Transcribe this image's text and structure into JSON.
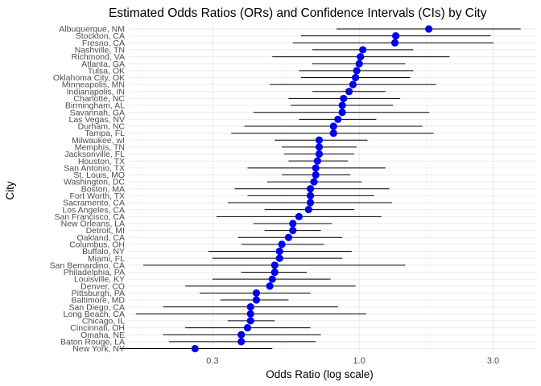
{
  "chart_data": {
    "type": "forest",
    "title": "Estimated Odds Ratios (ORs) and Confidence Intervals (CIs) by City",
    "xlabel": "Odds Ratio (log scale)",
    "ylabel": "City",
    "x_scale": "log",
    "xlim": [
      0.15,
      4.3
    ],
    "x_ticks": [
      0.3,
      1.0,
      3.0
    ],
    "x_tick_labels": [
      "0.3",
      "1.0",
      "3.0"
    ],
    "grid": true,
    "point_color": "#0000ee",
    "line_color": "#000000",
    "cities": [
      {
        "name": "Albuquerque, NM",
        "or": 1.77,
        "lo": 0.83,
        "hi": 3.76
      },
      {
        "name": "Stockton, CA",
        "or": 1.35,
        "lo": 0.62,
        "hi": 2.94
      },
      {
        "name": "Fresno, CA",
        "or": 1.34,
        "lo": 0.58,
        "hi": 3.01
      },
      {
        "name": "Nashville, TN",
        "or": 1.03,
        "lo": 0.68,
        "hi": 1.56
      },
      {
        "name": "Richmond, VA",
        "or": 1.01,
        "lo": 0.49,
        "hi": 2.1
      },
      {
        "name": "Atlanta, GA",
        "or": 1.0,
        "lo": 0.68,
        "hi": 1.46
      },
      {
        "name": "Tulsa, OK",
        "or": 0.98,
        "lo": 0.61,
        "hi": 1.56
      },
      {
        "name": "Oklahoma City, OK",
        "or": 0.97,
        "lo": 0.62,
        "hi": 1.52
      },
      {
        "name": "Minneapolis, MN",
        "or": 0.95,
        "lo": 0.48,
        "hi": 1.88
      },
      {
        "name": "Indianapolis, IN",
        "or": 0.92,
        "lo": 0.68,
        "hi": 1.24
      },
      {
        "name": "Charlotte, NC",
        "or": 0.88,
        "lo": 0.56,
        "hi": 1.4
      },
      {
        "name": "Birmingham, AL",
        "or": 0.87,
        "lo": 0.57,
        "hi": 1.32
      },
      {
        "name": "Savannah, GA",
        "or": 0.87,
        "lo": 0.42,
        "hi": 1.78
      },
      {
        "name": "Las Vegas, NV",
        "or": 0.84,
        "lo": 0.61,
        "hi": 1.15
      },
      {
        "name": "Durham, NC",
        "or": 0.81,
        "lo": 0.39,
        "hi": 1.68
      },
      {
        "name": "Tampa, FL",
        "or": 0.81,
        "lo": 0.35,
        "hi": 1.84
      },
      {
        "name": "Milwaukee, wI",
        "or": 0.72,
        "lo": 0.5,
        "hi": 1.07
      },
      {
        "name": "Memphis, TN",
        "or": 0.72,
        "lo": 0.53,
        "hi": 0.98
      },
      {
        "name": "Jacksonville, FL",
        "or": 0.72,
        "lo": 0.54,
        "hi": 0.96
      },
      {
        "name": "Houston, TX",
        "or": 0.71,
        "lo": 0.56,
        "hi": 0.91
      },
      {
        "name": "San Antonio, TX",
        "or": 0.7,
        "lo": 0.4,
        "hi": 1.24
      },
      {
        "name": "St. Louis, MO",
        "or": 0.7,
        "lo": 0.53,
        "hi": 0.93
      },
      {
        "name": "Washington, DC",
        "or": 0.69,
        "lo": 0.47,
        "hi": 1.02
      },
      {
        "name": "Boston, MA",
        "or": 0.67,
        "lo": 0.36,
        "hi": 1.28
      },
      {
        "name": "Fort Worth, TX",
        "or": 0.67,
        "lo": 0.4,
        "hi": 1.13
      },
      {
        "name": "Sacramento, CA",
        "or": 0.67,
        "lo": 0.34,
        "hi": 1.31
      },
      {
        "name": "Los Angeles, CA",
        "or": 0.66,
        "lo": 0.46,
        "hi": 0.96
      },
      {
        "name": "San Francisco, CA",
        "or": 0.61,
        "lo": 0.31,
        "hi": 1.2
      },
      {
        "name": "New Orleans, LA",
        "or": 0.58,
        "lo": 0.42,
        "hi": 0.8
      },
      {
        "name": "Detroit, MI",
        "or": 0.58,
        "lo": 0.46,
        "hi": 0.73
      },
      {
        "name": "Oakland, CA",
        "or": 0.56,
        "lo": 0.37,
        "hi": 0.87
      },
      {
        "name": "Columbus, OH",
        "or": 0.53,
        "lo": 0.38,
        "hi": 0.75
      },
      {
        "name": "Buffalo, NY",
        "or": 0.52,
        "lo": 0.29,
        "hi": 0.94
      },
      {
        "name": "Miami, FL",
        "or": 0.52,
        "lo": 0.3,
        "hi": 0.87
      },
      {
        "name": "San Bernardino, CA",
        "or": 0.5,
        "lo": 0.17,
        "hi": 1.46
      },
      {
        "name": "Philadelphia, PA",
        "or": 0.5,
        "lo": 0.38,
        "hi": 0.65
      },
      {
        "name": "Louisville, KY",
        "or": 0.49,
        "lo": 0.3,
        "hi": 0.79
      },
      {
        "name": "Denver, CO",
        "or": 0.48,
        "lo": 0.24,
        "hi": 0.97
      },
      {
        "name": "Pittsburgh, PA",
        "or": 0.43,
        "lo": 0.27,
        "hi": 0.67
      },
      {
        "name": "Baltimore, MD",
        "or": 0.43,
        "lo": 0.32,
        "hi": 0.56
      },
      {
        "name": "San Diego, CA",
        "or": 0.41,
        "lo": 0.2,
        "hi": 0.84
      },
      {
        "name": "Long Beach, CA",
        "or": 0.41,
        "lo": 0.16,
        "hi": 1.06
      },
      {
        "name": "Chicago, IL",
        "or": 0.41,
        "lo": 0.34,
        "hi": 0.5
      },
      {
        "name": "Cincinnati, OH",
        "or": 0.4,
        "lo": 0.24,
        "hi": 0.67
      },
      {
        "name": "Omaha, NE",
        "or": 0.38,
        "lo": 0.2,
        "hi": 0.73
      },
      {
        "name": "Baton Rouge, LA",
        "or": 0.38,
        "lo": 0.21,
        "hi": 0.7
      },
      {
        "name": "New York, NY",
        "or": 0.26,
        "lo": 0.14,
        "hi": 0.49
      }
    ]
  }
}
